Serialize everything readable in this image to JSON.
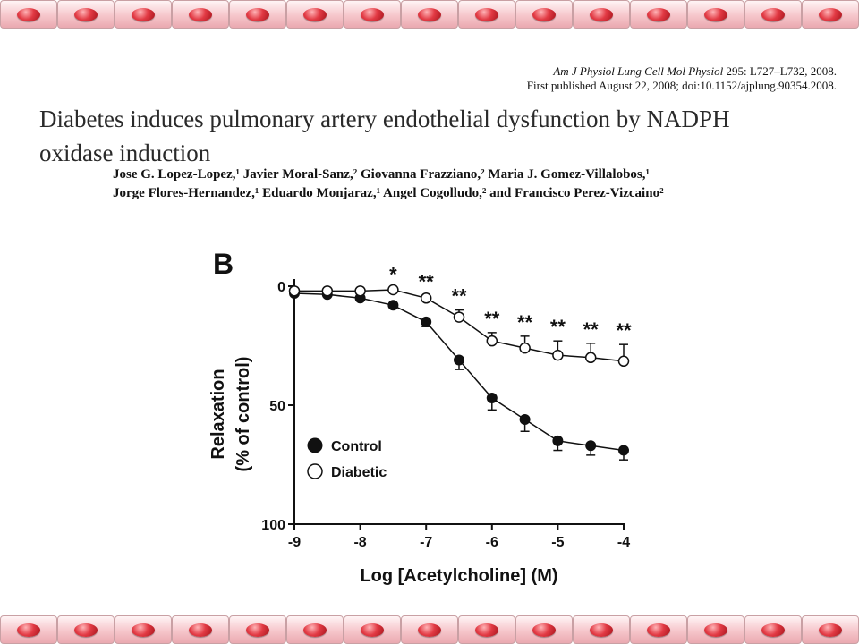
{
  "citation": {
    "journal": "Am J Physiol Lung Cell Mol Physiol",
    "volume_pages": " 295: L727–L732, 2008.",
    "first_published": "First published August 22, 2008; doi:10.1152/ajplung.90354.2008."
  },
  "title": {
    "line1": "Diabetes induces pulmonary artery endothelial dysfunction by NADPH",
    "line2": "oxidase induction"
  },
  "authors": {
    "line1": "Jose G. Lopez-Lopez,¹ Javier Moral-Sanz,² Giovanna Frazziano,² Maria J. Gomez-Villalobos,¹",
    "line2": "Jorge Flores-Hernandez,¹ Eduardo Monjaraz,¹ Angel Cogolludo,² and Francisco Perez-Vizcaino²"
  },
  "border": {
    "tile_count": 15,
    "oval_color": "#d42a34"
  },
  "chart_data": {
    "type": "line",
    "panel_label": "B",
    "xlabel": "Log [Acetylcholine] (M)",
    "ylabel": "Relaxation",
    "ylabel2": "(% of control)",
    "xlim": [
      -9,
      -4
    ],
    "ylim": [
      0,
      100
    ],
    "y_inverted": true,
    "xticks": [
      -9,
      -8,
      -7,
      -6,
      -5,
      -4
    ],
    "yticks": [
      0,
      50,
      100
    ],
    "x": [
      -9,
      -8.5,
      -8,
      -7.5,
      -7,
      -6.5,
      -6,
      -5.5,
      -5,
      -4.5,
      -4
    ],
    "series": [
      {
        "name": "Control",
        "marker": "filled-circle",
        "values": [
          3,
          3.5,
          5,
          8,
          15,
          31,
          47,
          56,
          65,
          67,
          69
        ],
        "error": [
          1,
          1,
          1,
          1,
          2,
          4,
          5,
          5,
          4,
          4,
          4
        ]
      },
      {
        "name": "Diabetic",
        "marker": "open-circle",
        "values": [
          2,
          2,
          2,
          1.5,
          5,
          13,
          23,
          26,
          29,
          30,
          31.5
        ],
        "error": [
          0.5,
          0.5,
          0.5,
          0.5,
          1,
          3,
          3.5,
          5,
          6,
          6,
          7
        ]
      }
    ],
    "significance": [
      {
        "x": -7.5,
        "label": "*"
      },
      {
        "x": -7,
        "label": "**"
      },
      {
        "x": -6.5,
        "label": "**"
      },
      {
        "x": -6,
        "label": "**"
      },
      {
        "x": -5.5,
        "label": "**"
      },
      {
        "x": -5,
        "label": "**"
      },
      {
        "x": -4.5,
        "label": "**"
      },
      {
        "x": -4,
        "label": "**"
      }
    ],
    "legend": {
      "position": "bottom-left",
      "entries": [
        "Control",
        "Diabetic"
      ]
    }
  }
}
